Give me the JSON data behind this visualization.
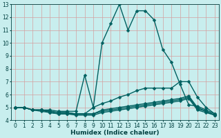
{
  "xlabel": "Humidex (Indice chaleur)",
  "ylabel": "",
  "bg_color": "#c8eeee",
  "grid_color": "#d4a0a0",
  "line_color": "#006060",
  "xlim": [
    -0.5,
    23.5
  ],
  "ylim": [
    4,
    13
  ],
  "xticks": [
    0,
    1,
    2,
    3,
    4,
    5,
    6,
    7,
    8,
    9,
    10,
    11,
    12,
    13,
    14,
    15,
    16,
    17,
    18,
    19,
    20,
    21,
    22,
    23
  ],
  "yticks": [
    4,
    5,
    6,
    7,
    8,
    9,
    10,
    11,
    12,
    13
  ],
  "lines": [
    {
      "x": [
        0,
        1,
        2,
        3,
        4,
        5,
        6,
        7,
        8,
        9,
        10,
        11,
        12,
        13,
        14,
        15,
        16,
        17,
        18,
        19,
        20,
        21,
        22,
        23
      ],
      "y": [
        5.0,
        5.0,
        4.8,
        4.8,
        4.8,
        4.7,
        4.7,
        4.7,
        7.5,
        5.0,
        5.3,
        5.5,
        5.8,
        6.0,
        6.3,
        6.5,
        6.5,
        6.5,
        6.5,
        7.0,
        7.0,
        5.8,
        5.0,
        4.5
      ]
    },
    {
      "x": [
        0,
        1,
        2,
        3,
        4,
        5,
        6,
        7,
        8,
        9,
        10,
        11,
        12,
        13,
        14,
        15,
        16,
        17,
        18,
        19,
        20,
        21,
        22,
        23
      ],
      "y": [
        5.0,
        5.0,
        4.8,
        4.8,
        4.7,
        4.6,
        4.6,
        4.5,
        4.5,
        5.0,
        10.0,
        11.5,
        13.0,
        11.0,
        12.5,
        12.5,
        11.8,
        9.5,
        8.5,
        6.8,
        5.2,
        5.1,
        4.8,
        4.5
      ]
    },
    {
      "x": [
        0,
        1,
        2,
        3,
        4,
        5,
        6,
        7,
        8,
        9,
        10,
        11,
        12,
        13,
        14,
        15,
        16,
        17,
        18,
        19,
        20,
        21,
        22,
        23
      ],
      "y": [
        5.0,
        5.0,
        4.8,
        4.8,
        4.7,
        4.6,
        4.6,
        4.5,
        4.5,
        4.5,
        4.8,
        4.9,
        5.0,
        5.1,
        5.2,
        5.3,
        5.4,
        5.5,
        5.6,
        5.7,
        5.9,
        5.0,
        4.7,
        4.4
      ]
    },
    {
      "x": [
        0,
        1,
        2,
        3,
        4,
        5,
        6,
        7,
        8,
        9,
        10,
        11,
        12,
        13,
        14,
        15,
        16,
        17,
        18,
        19,
        20,
        21,
        22,
        23
      ],
      "y": [
        5.0,
        5.0,
        4.8,
        4.8,
        4.6,
        4.5,
        4.5,
        4.5,
        4.5,
        4.5,
        4.7,
        4.8,
        4.9,
        5.0,
        5.1,
        5.2,
        5.3,
        5.4,
        5.5,
        5.6,
        5.8,
        4.9,
        4.7,
        4.4
      ]
    },
    {
      "x": [
        0,
        1,
        2,
        3,
        4,
        5,
        6,
        7,
        8,
        9,
        10,
        11,
        12,
        13,
        14,
        15,
        16,
        17,
        18,
        19,
        20,
        21,
        22,
        23
      ],
      "y": [
        5.0,
        5.0,
        4.8,
        4.7,
        4.6,
        4.5,
        4.5,
        4.4,
        4.4,
        4.4,
        4.6,
        4.7,
        4.8,
        4.9,
        5.0,
        5.1,
        5.2,
        5.3,
        5.4,
        5.5,
        5.7,
        4.8,
        4.6,
        4.4
      ]
    }
  ],
  "marker": "D",
  "markersize": 2.5,
  "linewidth": 1.0,
  "font_color": "#004040",
  "tick_fontsize": 5.5,
  "label_fontsize": 6.5
}
